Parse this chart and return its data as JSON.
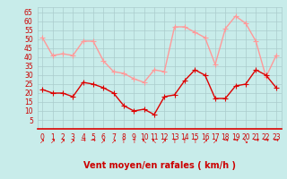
{
  "x": [
    0,
    1,
    2,
    3,
    4,
    5,
    6,
    7,
    8,
    9,
    10,
    11,
    12,
    13,
    14,
    15,
    16,
    17,
    18,
    19,
    20,
    21,
    22,
    23
  ],
  "wind_avg": [
    22,
    20,
    20,
    18,
    26,
    25,
    23,
    20,
    13,
    10,
    11,
    8,
    18,
    19,
    27,
    33,
    30,
    17,
    17,
    24,
    25,
    33,
    30,
    23
  ],
  "wind_gust": [
    51,
    41,
    42,
    41,
    49,
    49,
    38,
    32,
    31,
    28,
    26,
    33,
    32,
    57,
    57,
    54,
    51,
    36,
    56,
    63,
    59,
    49,
    29,
    41
  ],
  "bg_color": "#c8ecea",
  "grid_color": "#aacccc",
  "line_avg_color": "#dd0000",
  "line_gust_color": "#ff9999",
  "marker_size": 2.0,
  "line_width": 1.0,
  "ylim": [
    0,
    68
  ],
  "yticks": [
    5,
    10,
    15,
    20,
    25,
    30,
    35,
    40,
    45,
    50,
    55,
    60,
    65
  ],
  "xlim": [
    -0.5,
    23.5
  ],
  "xlabel": "Vent moyen/en rafales ( km/h )",
  "xlabel_color": "#cc0000",
  "tick_color": "#cc0000",
  "tick_fontsize": 5.5,
  "xlabel_fontsize": 7,
  "wind_dirs": [
    "↗",
    "↗",
    "↗",
    "↗",
    "→",
    "→",
    "↗",
    "↗",
    "↑",
    "↑",
    "↖",
    "↖",
    "↗",
    "↑",
    "↑",
    "↑",
    "↗",
    "↗",
    "→",
    "→",
    "↘",
    "→",
    "→",
    "→"
  ]
}
